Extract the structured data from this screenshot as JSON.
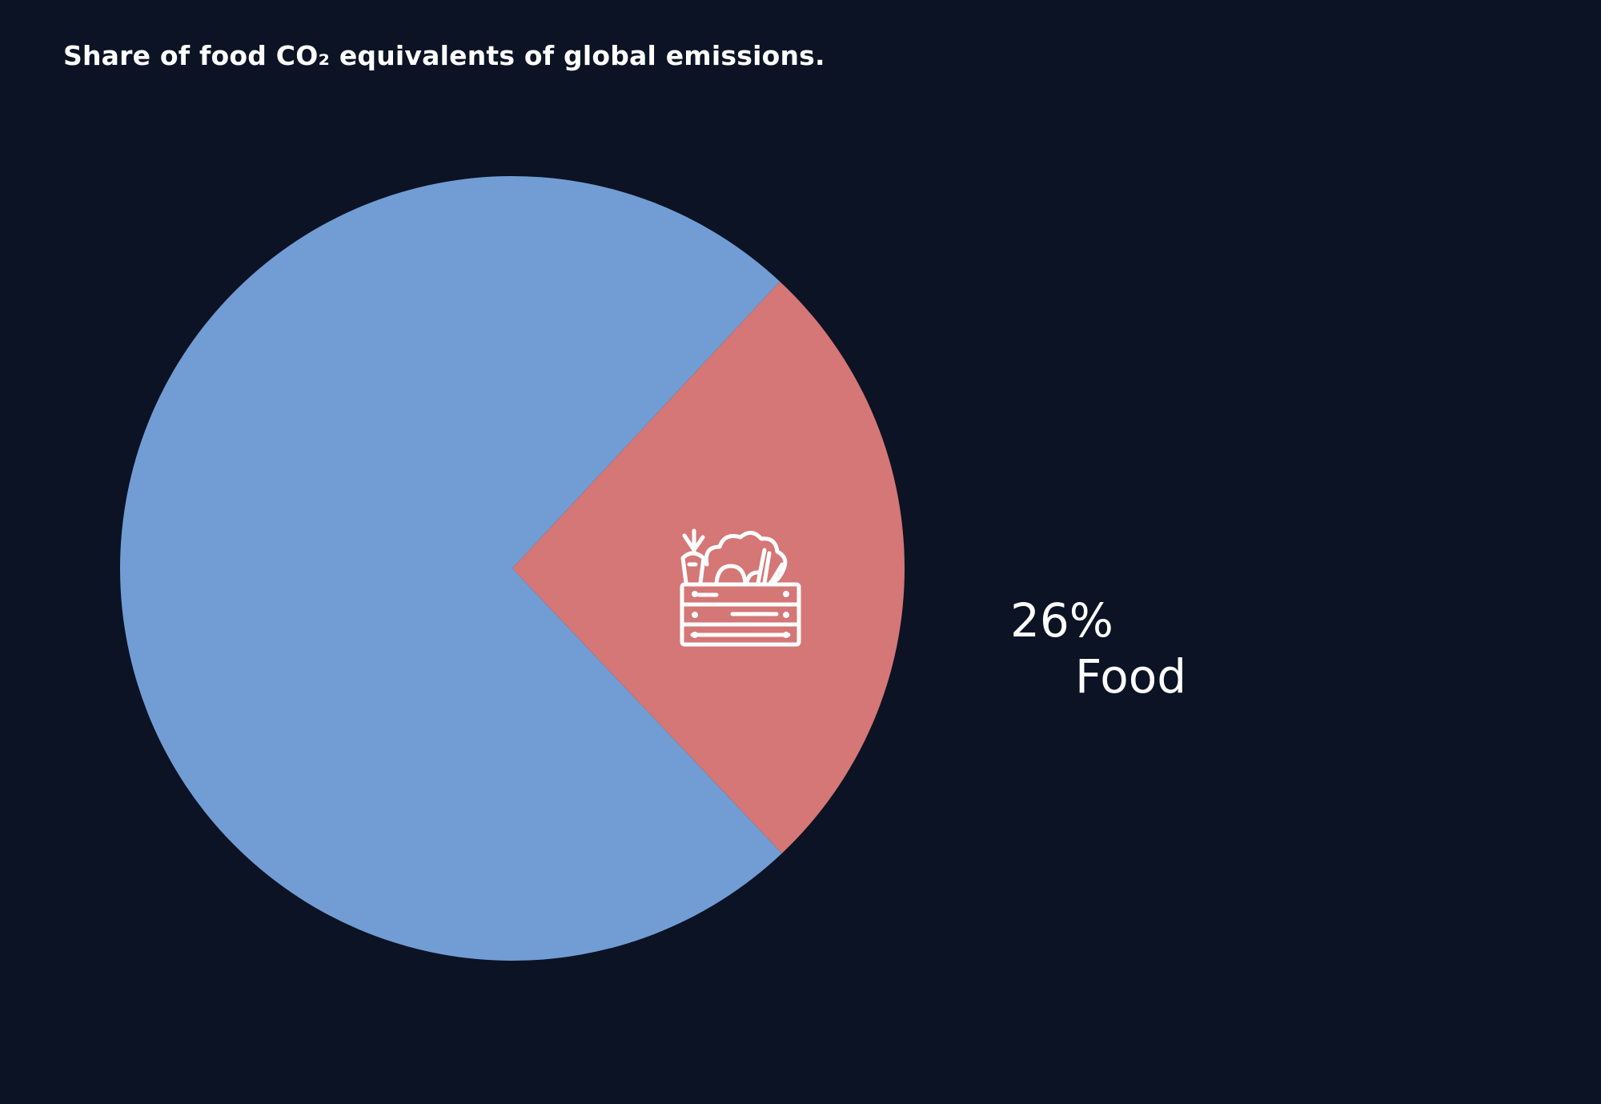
{
  "chart_data": {
    "type": "pie",
    "title": "Share of food CO₂ equivalents of global emissions.",
    "slices": [
      {
        "name": "Food",
        "value": 26,
        "value_label": "26%",
        "color": "#d47776",
        "icon": "vegetable-crate-icon",
        "labeled": true
      },
      {
        "name": "",
        "value": 74,
        "value_label": "",
        "color": "#719dd4",
        "labeled": false
      }
    ],
    "start_angle_deg": 43,
    "direction": "clockwise",
    "legend": "none"
  },
  "colors": {
    "background": "#0c1324",
    "text": "#ffffff"
  }
}
